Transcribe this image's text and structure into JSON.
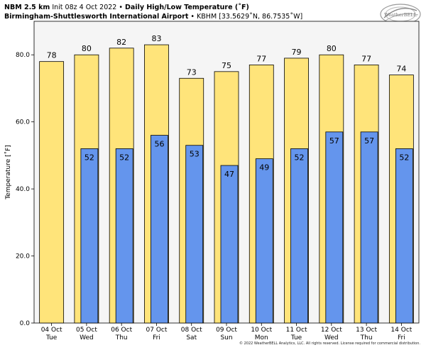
{
  "header": {
    "model": "NBM 2.5 km",
    "init": "Init 08z 4 Oct 2022",
    "bullet": "•",
    "title": "Daily High/Low Temperature (˚F)",
    "location": "Birmingham-Shuttlesworth International Airport",
    "station": "KBHM [33.5629˚N, 86.7535˚W]"
  },
  "logo": {
    "text": "WeatherBELL"
  },
  "copyright": "© 2022 WeatherBELL Analytics, LLC. All rights reserved. License required for commercial distribution.",
  "colors": {
    "high_bar": "#FFE47A",
    "low_bar": "#6495ED",
    "plot_bg": "#F5F5F5",
    "edge": "#000000"
  },
  "chart_data": {
    "type": "bar",
    "ylabel": "Temperature [˚F]",
    "ylim": [
      0,
      90
    ],
    "yticks": [
      0,
      20,
      40,
      60,
      80
    ],
    "ytick_labels": [
      "0.0",
      "20.0",
      "40.0",
      "60.0",
      "80.0"
    ],
    "grid": false,
    "categories": [
      [
        "04 Oct",
        "Tue"
      ],
      [
        "05 Oct",
        "Wed"
      ],
      [
        "06 Oct",
        "Thu"
      ],
      [
        "07 Oct",
        "Fri"
      ],
      [
        "08 Oct",
        "Sat"
      ],
      [
        "09 Oct",
        "Sun"
      ],
      [
        "10 Oct",
        "Mon"
      ],
      [
        "11 Oct",
        "Tue"
      ],
      [
        "12 Oct",
        "Wed"
      ],
      [
        "13 Oct",
        "Thu"
      ],
      [
        "14 Oct",
        "Fri"
      ]
    ],
    "series": [
      {
        "values": [
          78,
          80,
          82,
          83,
          73,
          75,
          77,
          79,
          80,
          77,
          74
        ]
      },
      {
        "values": [
          null,
          52,
          52,
          56,
          53,
          47,
          49,
          52,
          57,
          57,
          52
        ]
      }
    ]
  }
}
